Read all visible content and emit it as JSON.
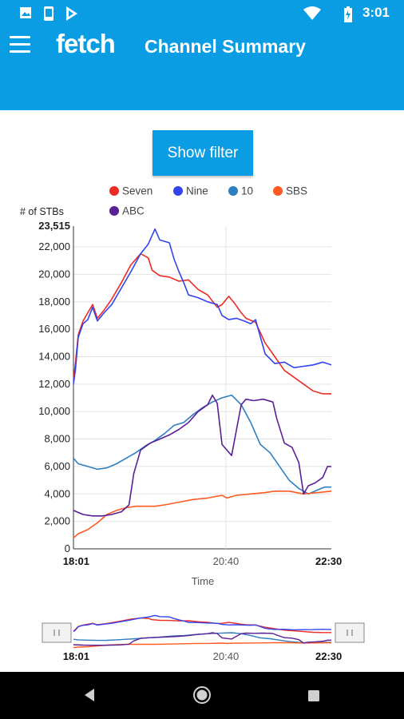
{
  "status_bar": {
    "time": "3:01",
    "icons": [
      "image-icon",
      "phone-icon",
      "play-store-icon",
      "wifi-icon",
      "battery-icon"
    ]
  },
  "app_bar": {
    "logo": "fetch",
    "title": "Channel Summary",
    "menu_icon": "hamburger-menu-icon"
  },
  "filter_button": {
    "label": "Show filter"
  },
  "navigation_bar": {
    "icons": [
      "back-icon",
      "home-icon",
      "recents-icon"
    ]
  },
  "colors": {
    "brand": "#0a9de3",
    "seven": "#ee2b24",
    "nine": "#3344ee",
    "ten": "#2e7fbf",
    "sbs": "#ff5a22",
    "abc": "#5a1e96"
  },
  "chart_data": {
    "type": "line",
    "ylabel": "# of STBs",
    "xlabel": "Time",
    "y_max_label": "23,515",
    "ylim": [
      0,
      23515
    ],
    "y_ticks": [
      "0",
      "2,000",
      "4,000",
      "6,000",
      "8,000",
      "10,000",
      "12,000",
      "14,000",
      "16,000",
      "18,000",
      "20,000",
      "22,000"
    ],
    "y_tick_values": [
      0,
      2000,
      4000,
      6000,
      8000,
      10000,
      12000,
      14000,
      16000,
      18000,
      20000,
      22000
    ],
    "x_ticks": [
      "18:01",
      "20:40",
      "22:30"
    ],
    "x_tick_minutes": [
      0,
      159,
      269
    ],
    "x_range_minutes": [
      0,
      269
    ],
    "legend_position": "top",
    "vertical_marker": "20:40",
    "series": [
      {
        "name": "Seven",
        "color": "#ee2b24",
        "points": [
          [
            0,
            12300
          ],
          [
            2,
            13500
          ],
          [
            5,
            15600
          ],
          [
            10,
            16600
          ],
          [
            15,
            17200
          ],
          [
            20,
            17800
          ],
          [
            25,
            16800
          ],
          [
            32,
            17400
          ],
          [
            40,
            18200
          ],
          [
            50,
            19400
          ],
          [
            60,
            20700
          ],
          [
            70,
            21500
          ],
          [
            78,
            21200
          ],
          [
            82,
            20300
          ],
          [
            90,
            19900
          ],
          [
            100,
            19800
          ],
          [
            110,
            19500
          ],
          [
            120,
            19600
          ],
          [
            130,
            18900
          ],
          [
            140,
            18500
          ],
          [
            150,
            17600
          ],
          [
            155,
            17800
          ],
          [
            162,
            18400
          ],
          [
            168,
            17900
          ],
          [
            175,
            17200
          ],
          [
            180,
            16800
          ],
          [
            190,
            16500
          ],
          [
            200,
            15000
          ],
          [
            210,
            14000
          ],
          [
            220,
            13000
          ],
          [
            230,
            12500
          ],
          [
            240,
            12000
          ],
          [
            250,
            11500
          ],
          [
            260,
            11300
          ],
          [
            269,
            11300
          ]
        ]
      },
      {
        "name": "Nine",
        "color": "#3344ee",
        "points": [
          [
            0,
            12000
          ],
          [
            2,
            13000
          ],
          [
            5,
            15400
          ],
          [
            10,
            16400
          ],
          [
            15,
            16700
          ],
          [
            20,
            17600
          ],
          [
            25,
            16600
          ],
          [
            32,
            17200
          ],
          [
            40,
            17800
          ],
          [
            50,
            19000
          ],
          [
            60,
            20200
          ],
          [
            70,
            21500
          ],
          [
            78,
            22200
          ],
          [
            85,
            23300
          ],
          [
            90,
            22500
          ],
          [
            100,
            22300
          ],
          [
            105,
            21100
          ],
          [
            110,
            20200
          ],
          [
            115,
            19400
          ],
          [
            120,
            18500
          ],
          [
            130,
            18300
          ],
          [
            140,
            18000
          ],
          [
            150,
            17800
          ],
          [
            155,
            17000
          ],
          [
            162,
            16700
          ],
          [
            170,
            16800
          ],
          [
            178,
            16600
          ],
          [
            185,
            16400
          ],
          [
            190,
            16700
          ],
          [
            200,
            14200
          ],
          [
            210,
            13500
          ],
          [
            220,
            13600
          ],
          [
            230,
            13200
          ],
          [
            240,
            13300
          ],
          [
            250,
            13400
          ],
          [
            260,
            13600
          ],
          [
            269,
            13400
          ]
        ]
      },
      {
        "name": "10",
        "color": "#2e7fbf",
        "points": [
          [
            0,
            6600
          ],
          [
            5,
            6200
          ],
          [
            15,
            6000
          ],
          [
            25,
            5800
          ],
          [
            35,
            5900
          ],
          [
            45,
            6200
          ],
          [
            55,
            6600
          ],
          [
            65,
            7000
          ],
          [
            75,
            7500
          ],
          [
            85,
            7900
          ],
          [
            95,
            8400
          ],
          [
            105,
            9000
          ],
          [
            115,
            9200
          ],
          [
            125,
            9800
          ],
          [
            135,
            10300
          ],
          [
            145,
            10700
          ],
          [
            155,
            11000
          ],
          [
            165,
            11200
          ],
          [
            175,
            10500
          ],
          [
            185,
            9200
          ],
          [
            195,
            7600
          ],
          [
            205,
            7000
          ],
          [
            215,
            6000
          ],
          [
            225,
            5000
          ],
          [
            235,
            4400
          ],
          [
            245,
            4000
          ],
          [
            255,
            4300
          ],
          [
            262,
            4500
          ],
          [
            269,
            4500
          ]
        ]
      },
      {
        "name": "SBS",
        "color": "#ff5a22",
        "points": [
          [
            0,
            800
          ],
          [
            5,
            1100
          ],
          [
            15,
            1400
          ],
          [
            25,
            1900
          ],
          [
            35,
            2500
          ],
          [
            45,
            2800
          ],
          [
            55,
            3000
          ],
          [
            65,
            3100
          ],
          [
            75,
            3100
          ],
          [
            85,
            3100
          ],
          [
            95,
            3200
          ],
          [
            110,
            3400
          ],
          [
            125,
            3600
          ],
          [
            140,
            3700
          ],
          [
            155,
            3900
          ],
          [
            160,
            3700
          ],
          [
            170,
            3900
          ],
          [
            185,
            4000
          ],
          [
            200,
            4100
          ],
          [
            210,
            4200
          ],
          [
            225,
            4200
          ],
          [
            240,
            4000
          ],
          [
            255,
            4100
          ],
          [
            269,
            4200
          ]
        ]
      },
      {
        "name": "ABC",
        "color": "#5a1e96",
        "points": [
          [
            0,
            2800
          ],
          [
            10,
            2500
          ],
          [
            20,
            2400
          ],
          [
            30,
            2400
          ],
          [
            40,
            2500
          ],
          [
            50,
            2700
          ],
          [
            58,
            3200
          ],
          [
            63,
            5500
          ],
          [
            70,
            7200
          ],
          [
            80,
            7700
          ],
          [
            90,
            8000
          ],
          [
            100,
            8300
          ],
          [
            110,
            8700
          ],
          [
            120,
            9200
          ],
          [
            130,
            10000
          ],
          [
            140,
            10500
          ],
          [
            145,
            11200
          ],
          [
            150,
            10600
          ],
          [
            155,
            7600
          ],
          [
            165,
            6800
          ],
          [
            175,
            10500
          ],
          [
            180,
            10900
          ],
          [
            188,
            10800
          ],
          [
            198,
            10900
          ],
          [
            208,
            10700
          ],
          [
            212,
            9500
          ],
          [
            220,
            7700
          ],
          [
            228,
            7400
          ],
          [
            235,
            6300
          ],
          [
            240,
            4000
          ],
          [
            245,
            4600
          ],
          [
            252,
            4800
          ],
          [
            260,
            5200
          ],
          [
            265,
            6000
          ],
          [
            269,
            6000
          ]
        ]
      }
    ]
  }
}
